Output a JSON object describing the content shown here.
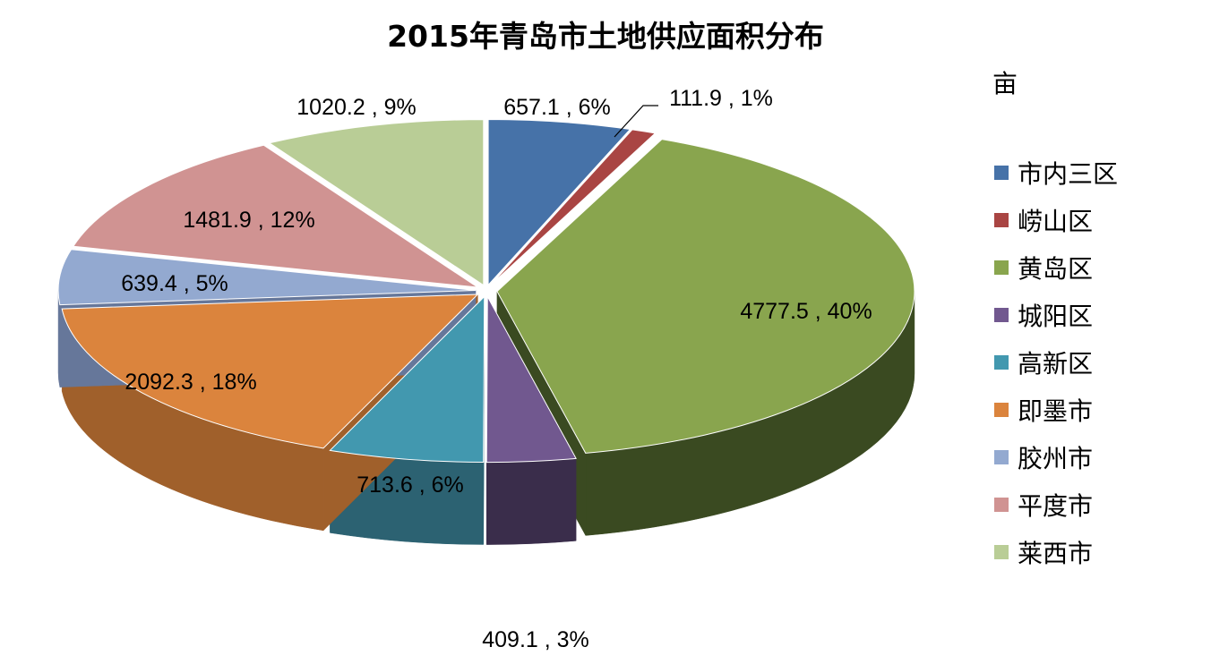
{
  "chart_data": {
    "type": "pie",
    "style": "3d-exploded",
    "title": "2015年青岛市土地供应面积分布",
    "unit": "亩",
    "legend_position": "right",
    "slices": [
      {
        "name": "市内三区",
        "value": 657.1,
        "label": "657.1 , 6%",
        "color": "#4672A8",
        "side_color": "#2E4B70"
      },
      {
        "name": "崂山区",
        "value": 111.9,
        "label": "111.9 , 1%",
        "color": "#A94543",
        "side_color": "#6E2C2B"
      },
      {
        "name": "黄岛区",
        "value": 4777.5,
        "label": "4777.5 , 40%",
        "color": "#89A54E",
        "side_color": "#3A4A21"
      },
      {
        "name": "城阳区",
        "value": 409.1,
        "label": "409.1 , 3%",
        "color": "#71588F",
        "side_color": "#3A2D4B"
      },
      {
        "name": "高新区",
        "value": 713.6,
        "label": "713.6 , 6%",
        "color": "#4298AF",
        "side_color": "#2C6272"
      },
      {
        "name": "即墨市",
        "value": 2092.3,
        "label": "2092.3 , 18%",
        "color": "#DB843D",
        "side_color": "#A0602B"
      },
      {
        "name": "胶州市",
        "value": 639.4,
        "label": "639.4 , 5%",
        "color": "#93A9D0",
        "side_color": "#66779A"
      },
      {
        "name": "平度市",
        "value": 1481.9,
        "label": "1481.9 , 12%",
        "color": "#D09392",
        "side_color": "#9C6B6A"
      },
      {
        "name": "莱西市",
        "value": 1020.2,
        "label": "1020.2 , 9%",
        "color": "#B9CD96",
        "side_color": "#879872"
      }
    ]
  }
}
